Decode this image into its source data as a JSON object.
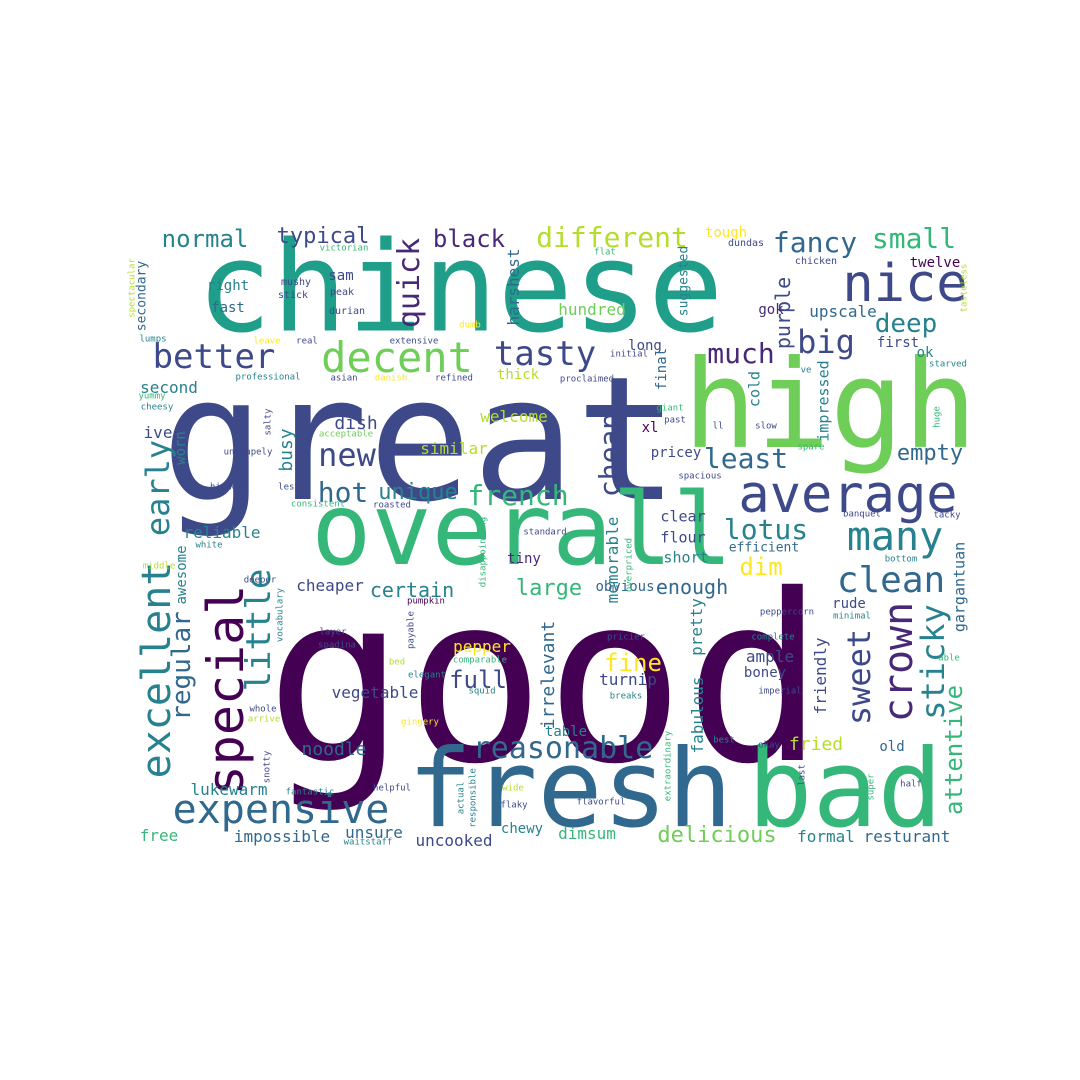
{
  "colors": {
    "background": "#ffffff",
    "palette": [
      "#440154",
      "#482878",
      "#3e4989",
      "#31688e",
      "#26828e",
      "#1f9e89",
      "#35b779",
      "#6ece58",
      "#b5de2b",
      "#fde725"
    ]
  },
  "words": [
    {
      "text": "good",
      "color": "#440154"
    },
    {
      "text": "great",
      "color": "#3e4989"
    },
    {
      "text": "chinese",
      "color": "#1f9e89"
    },
    {
      "text": "overall",
      "color": "#35b779"
    },
    {
      "text": "high",
      "color": "#6ece58"
    },
    {
      "text": "fresh",
      "color": "#31688e"
    },
    {
      "text": "bad",
      "color": "#35b779"
    },
    {
      "text": "average",
      "color": "#3e4989"
    },
    {
      "text": "nice",
      "color": "#3e4989"
    },
    {
      "text": "decent",
      "color": "#6ece58"
    },
    {
      "text": "better",
      "color": "#3e4989"
    },
    {
      "text": "tasty",
      "color": "#3e4989"
    },
    {
      "text": "different",
      "color": "#b5de2b"
    },
    {
      "text": "expensive",
      "color": "#31688e"
    },
    {
      "text": "reasonable",
      "color": "#31688e"
    },
    {
      "text": "special",
      "color": "#440154"
    },
    {
      "text": "excellent",
      "color": "#26828e"
    },
    {
      "text": "crown",
      "color": "#482878"
    },
    {
      "text": "many",
      "color": "#26828e"
    },
    {
      "text": "clean",
      "color": "#31688e"
    },
    {
      "text": "little",
      "color": "#26828e"
    },
    {
      "text": "early",
      "color": "#26828e"
    },
    {
      "text": "quick",
      "color": "#482878"
    },
    {
      "text": "fancy",
      "color": "#31688e"
    },
    {
      "text": "small",
      "color": "#35b779"
    },
    {
      "text": "big",
      "color": "#3e4989"
    },
    {
      "text": "deep",
      "color": "#26828e"
    },
    {
      "text": "sweet",
      "color": "#3e4989"
    },
    {
      "text": "sticky",
      "color": "#26828e"
    },
    {
      "text": "new",
      "color": "#3e4989"
    },
    {
      "text": "hot",
      "color": "#31688e"
    },
    {
      "text": "french",
      "color": "#35b779"
    },
    {
      "text": "cheap",
      "color": "#3e4989"
    },
    {
      "text": "least",
      "color": "#31688e"
    },
    {
      "text": "lotus",
      "color": "#26828e"
    },
    {
      "text": "much",
      "color": "#482878"
    },
    {
      "text": "black",
      "color": "#482878"
    },
    {
      "text": "normal",
      "color": "#26828e"
    },
    {
      "text": "typical",
      "color": "#3e4989"
    },
    {
      "text": "regular",
      "color": "#31688e"
    },
    {
      "text": "attentive",
      "color": "#35b779"
    },
    {
      "text": "empty",
      "color": "#31688e"
    },
    {
      "text": "unique",
      "color": "#26828e"
    },
    {
      "text": "dim",
      "color": "#fde725"
    },
    {
      "text": "full",
      "color": "#3e4989"
    },
    {
      "text": "fine",
      "color": "#fde725"
    },
    {
      "text": "delicious",
      "color": "#6ece58"
    },
    {
      "text": "certain",
      "color": "#26828e"
    },
    {
      "text": "large",
      "color": "#35b779"
    },
    {
      "text": "enough",
      "color": "#31688e"
    },
    {
      "text": "purple",
      "color": "#3e4989"
    },
    {
      "text": "upscale",
      "color": "#31688e"
    },
    {
      "text": "busy",
      "color": "#26828e"
    },
    {
      "text": "dish",
      "color": "#3e4989"
    },
    {
      "text": "second",
      "color": "#26828e"
    },
    {
      "text": "fried",
      "color": "#b5de2b"
    },
    {
      "text": "gargantuan",
      "color": "#31688e"
    },
    {
      "text": "irrelevant",
      "color": "#31688e"
    },
    {
      "text": "fabulous",
      "color": "#26828e"
    },
    {
      "text": "pretty",
      "color": "#26828e"
    },
    {
      "text": "noodle",
      "color": "#31688e"
    },
    {
      "text": "vegetable",
      "color": "#3e4989"
    },
    {
      "text": "pepper",
      "color": "#fde725"
    },
    {
      "text": "memorable",
      "color": "#26828e"
    },
    {
      "text": "harshest",
      "color": "#31688e"
    },
    {
      "text": "friendly",
      "color": "#3e4989"
    },
    {
      "text": "ample",
      "color": "#3e4989"
    },
    {
      "text": "hundred",
      "color": "#6ece58"
    },
    {
      "text": "cold",
      "color": "#26828e"
    },
    {
      "text": "impressed",
      "color": "#26828e"
    },
    {
      "text": "welcome",
      "color": "#b5de2b"
    },
    {
      "text": "similar",
      "color": "#b5de2b"
    },
    {
      "text": "lukewarm",
      "color": "#26828e"
    },
    {
      "text": "impossible",
      "color": "#31688e"
    },
    {
      "text": "unsure",
      "color": "#31688e"
    },
    {
      "text": "uncooked",
      "color": "#3e4989"
    },
    {
      "text": "dimsum",
      "color": "#35b779"
    },
    {
      "text": "formal",
      "color": "#26828e"
    },
    {
      "text": "resturant",
      "color": "#31688e"
    },
    {
      "text": "free",
      "color": "#35b779"
    },
    {
      "text": "chewy",
      "color": "#26828e"
    },
    {
      "text": "table",
      "color": "#26828e"
    },
    {
      "text": "turnip",
      "color": "#3e4989"
    },
    {
      "text": "reliable",
      "color": "#26828e"
    },
    {
      "text": "cheaper",
      "color": "#3e4989"
    },
    {
      "text": "awesome",
      "color": "#26828e"
    },
    {
      "text": "worn",
      "color": "#26828e"
    },
    {
      "text": "ive",
      "color": "#3e4989"
    },
    {
      "text": "clear",
      "color": "#3e4989"
    },
    {
      "text": "flour",
      "color": "#3e4989"
    },
    {
      "text": "short",
      "color": "#26828e"
    },
    {
      "text": "efficient",
      "color": "#31688e"
    },
    {
      "text": "obvious",
      "color": "#31688e"
    },
    {
      "text": "tiny",
      "color": "#482878"
    },
    {
      "text": "rude",
      "color": "#3e4989"
    },
    {
      "text": "boney",
      "color": "#3e4989"
    },
    {
      "text": "old",
      "color": "#31688e"
    },
    {
      "text": "pricey",
      "color": "#3e4989"
    },
    {
      "text": "xl",
      "color": "#440154"
    },
    {
      "text": "long",
      "color": "#3e4989"
    },
    {
      "text": "final",
      "color": "#31688e"
    },
    {
      "text": "thick",
      "color": "#b5de2b"
    },
    {
      "text": "sam",
      "color": "#3e4989"
    },
    {
      "text": "right",
      "color": "#26828e"
    },
    {
      "text": "fast",
      "color": "#31688e"
    },
    {
      "text": "secondary",
      "color": "#31688e"
    },
    {
      "text": "suggested",
      "color": "#26828e"
    },
    {
      "text": "gok",
      "color": "#482878"
    },
    {
      "text": "first",
      "color": "#3e4989"
    },
    {
      "text": "ok",
      "color": "#26828e"
    },
    {
      "text": "twelve",
      "color": "#440154"
    },
    {
      "text": "tough",
      "color": "#fde725"
    },
    {
      "text": "dundas",
      "color": "#3e4989"
    },
    {
      "text": "chicken",
      "color": "#3e4989"
    },
    {
      "text": "tasteless",
      "color": "#b5de2b"
    },
    {
      "text": "victorian",
      "color": "#35b779"
    },
    {
      "text": "mushy",
      "color": "#3e4989"
    },
    {
      "text": "stick",
      "color": "#3e4989"
    },
    {
      "text": "peak",
      "color": "#3e4989"
    },
    {
      "text": "durian",
      "color": "#3e4989"
    },
    {
      "text": "spectacular",
      "color": "#b5de2b"
    },
    {
      "text": "lumps",
      "color": "#26828e"
    },
    {
      "text": "leave",
      "color": "#fde725"
    },
    {
      "text": "real",
      "color": "#3e4989"
    },
    {
      "text": "extensive",
      "color": "#3e4989"
    },
    {
      "text": "dumb",
      "color": "#fde725"
    },
    {
      "text": "flat",
      "color": "#35b779"
    },
    {
      "text": "initial",
      "color": "#3e4989"
    },
    {
      "text": "proclaimed",
      "color": "#3e4989"
    },
    {
      "text": "professional",
      "color": "#26828e"
    },
    {
      "text": "asian",
      "color": "#3e4989"
    },
    {
      "text": "danish",
      "color": "#fde725"
    },
    {
      "text": "refined",
      "color": "#3e4989"
    },
    {
      "text": "yummy",
      "color": "#35b779"
    },
    {
      "text": "cheesy",
      "color": "#26828e"
    },
    {
      "text": "salty",
      "color": "#3e4989"
    },
    {
      "text": "acceptable",
      "color": "#6ece58"
    },
    {
      "text": "unshapely",
      "color": "#3e4989"
    },
    {
      "text": "highest",
      "color": "#3e4989"
    },
    {
      "text": "less",
      "color": "#3e4989"
    },
    {
      "text": "consistent",
      "color": "#35b779"
    },
    {
      "text": "roasted",
      "color": "#3e4989"
    },
    {
      "text": "white",
      "color": "#26828e"
    },
    {
      "text": "deeper",
      "color": "#3e4989"
    },
    {
      "text": "middle",
      "color": "#b5de2b"
    },
    {
      "text": "vocabulary",
      "color": "#26828e"
    },
    {
      "text": "pumpkin",
      "color": "#440154"
    },
    {
      "text": "payable",
      "color": "#3e4989"
    },
    {
      "text": "layer",
      "color": "#3e4989"
    },
    {
      "text": "spadina",
      "color": "#3e4989"
    },
    {
      "text": "bed",
      "color": "#b5de2b"
    },
    {
      "text": "elegant",
      "color": "#26828e"
    },
    {
      "text": "comparable",
      "color": "#35b779"
    },
    {
      "text": "squid",
      "color": "#26828e"
    },
    {
      "text": "gingery",
      "color": "#fde725"
    },
    {
      "text": "whole",
      "color": "#3e4989"
    },
    {
      "text": "arrive",
      "color": "#b5de2b"
    },
    {
      "text": "snotty",
      "color": "#3e4989"
    },
    {
      "text": "fantastic",
      "color": "#26828e"
    },
    {
      "text": "helpful",
      "color": "#3e4989"
    },
    {
      "text": "waitstaff",
      "color": "#26828e"
    },
    {
      "text": "actual",
      "color": "#26828e"
    },
    {
      "text": "responsible",
      "color": "#26828e"
    },
    {
      "text": "wide",
      "color": "#b5de2b"
    },
    {
      "text": "flaky",
      "color": "#3e4989"
    },
    {
      "text": "flavorful",
      "color": "#3e4989"
    },
    {
      "text": "extraordinary",
      "color": "#35b779"
    },
    {
      "text": "standard",
      "color": "#3e4989"
    },
    {
      "text": "disappointing",
      "color": "#35b779"
    },
    {
      "text": "overpriced",
      "color": "#35b779"
    },
    {
      "text": "spacious",
      "color": "#3e4989"
    },
    {
      "text": "pricier",
      "color": "#3e4989"
    },
    {
      "text": "breaks",
      "color": "#26828e"
    },
    {
      "text": "best",
      "color": "#26828e"
    },
    {
      "text": "okay",
      "color": "#3e4989"
    },
    {
      "text": "last",
      "color": "#3e4989"
    },
    {
      "text": "super",
      "color": "#35b779"
    },
    {
      "text": "half",
      "color": "#3e4989"
    },
    {
      "text": "imperial",
      "color": "#3e4989"
    },
    {
      "text": "complete",
      "color": "#26828e"
    },
    {
      "text": "able",
      "color": "#35b779"
    },
    {
      "text": "minimal",
      "color": "#26828e"
    },
    {
      "text": "peppercorn",
      "color": "#3e4989"
    },
    {
      "text": "bottom",
      "color": "#26828e"
    },
    {
      "text": "tacky",
      "color": "#3e4989"
    },
    {
      "text": "banquet",
      "color": "#3e4989"
    },
    {
      "text": "giant",
      "color": "#35b779"
    },
    {
      "text": "past",
      "color": "#3e4989"
    },
    {
      "text": "ll",
      "color": "#3e4989"
    },
    {
      "text": "slow",
      "color": "#3e4989"
    },
    {
      "text": "spare",
      "color": "#35b779"
    },
    {
      "text": "huge",
      "color": "#35b779"
    },
    {
      "text": "starved",
      "color": "#26828e"
    },
    {
      "text": "ve",
      "color": "#26828e"
    }
  ]
}
